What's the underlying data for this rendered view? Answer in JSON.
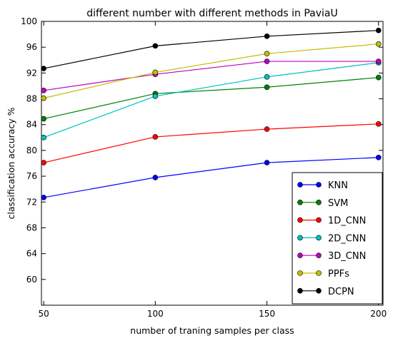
{
  "chart_data": {
    "type": "line",
    "title": "different number with different methods in PaviaU",
    "xlabel": "number of traning samples per class",
    "ylabel": "classification accuracy %",
    "x": [
      50,
      100,
      150,
      200
    ],
    "xlim": [
      49,
      202
    ],
    "ylim": [
      56,
      100
    ],
    "xticks": [
      "50",
      "100",
      "150",
      "200"
    ],
    "yticks": [
      "60",
      "64",
      "68",
      "72",
      "76",
      "80",
      "84",
      "88",
      "92",
      "96",
      "100"
    ],
    "grid": false,
    "legend_position": "lower-right",
    "series": [
      {
        "name": "KNN",
        "color": "#0000ff",
        "values": [
          72.7,
          75.8,
          78.1,
          78.9
        ]
      },
      {
        "name": "SVM",
        "color": "#008000",
        "values": [
          84.9,
          88.8,
          89.8,
          91.3
        ]
      },
      {
        "name": "1D_CNN",
        "color": "#ff0000",
        "values": [
          78.1,
          82.1,
          83.3,
          84.1
        ]
      },
      {
        "name": "2D_CNN",
        "color": "#00bfbf",
        "values": [
          82.0,
          88.4,
          91.4,
          93.6
        ]
      },
      {
        "name": "3D_CNN",
        "color": "#bf00bf",
        "values": [
          89.3,
          91.8,
          93.8,
          93.8
        ]
      },
      {
        "name": "PPFs",
        "color": "#bfbf00",
        "values": [
          88.1,
          92.1,
          95.0,
          96.5
        ]
      },
      {
        "name": "DCPN",
        "color": "#000000",
        "values": [
          92.7,
          96.2,
          97.7,
          98.6
        ]
      }
    ]
  }
}
